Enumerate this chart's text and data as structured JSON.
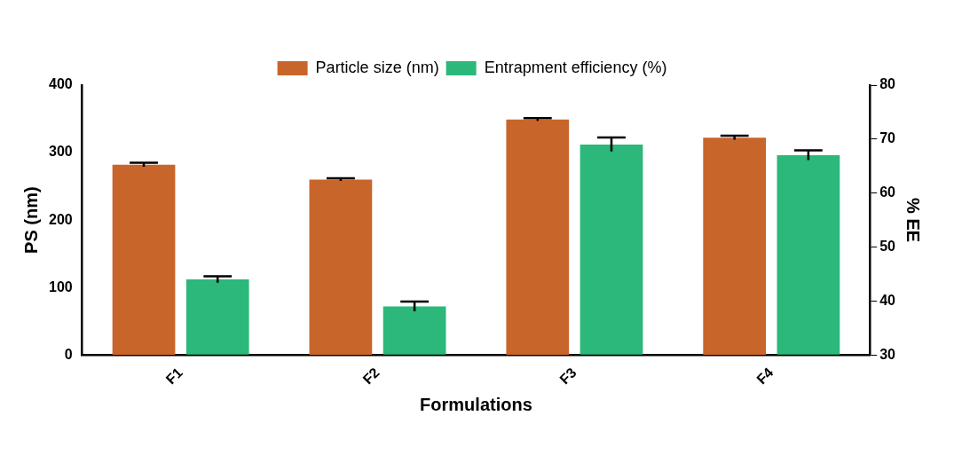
{
  "chart_data": {
    "type": "bar",
    "xlabel": "Formulations",
    "ylabel": "PS (nm)",
    "y2label": "% EE",
    "categories": [
      "F1",
      "F2",
      "F3",
      "F4"
    ],
    "series": [
      {
        "name": "Particle size (nm)",
        "color": "#c8652b",
        "values": [
          282,
          260,
          349,
          322
        ],
        "errors": [
          3,
          2,
          2,
          3
        ]
      },
      {
        "name": "Entrapment efficiency (%)",
        "color": "#2bb87a",
        "axis": "y2",
        "values": [
          44.0,
          39.0,
          69.0,
          67.0
        ],
        "errors": [
          0.6,
          0.9,
          1.3,
          0.9
        ]
      }
    ],
    "ylim": [
      0,
      400
    ],
    "yticks": [
      0,
      100,
      200,
      300,
      400
    ],
    "y2lim": [
      30,
      80
    ],
    "y2ticks": [
      30,
      40,
      50,
      60,
      70,
      80
    ],
    "grid": false,
    "legend": "top"
  }
}
